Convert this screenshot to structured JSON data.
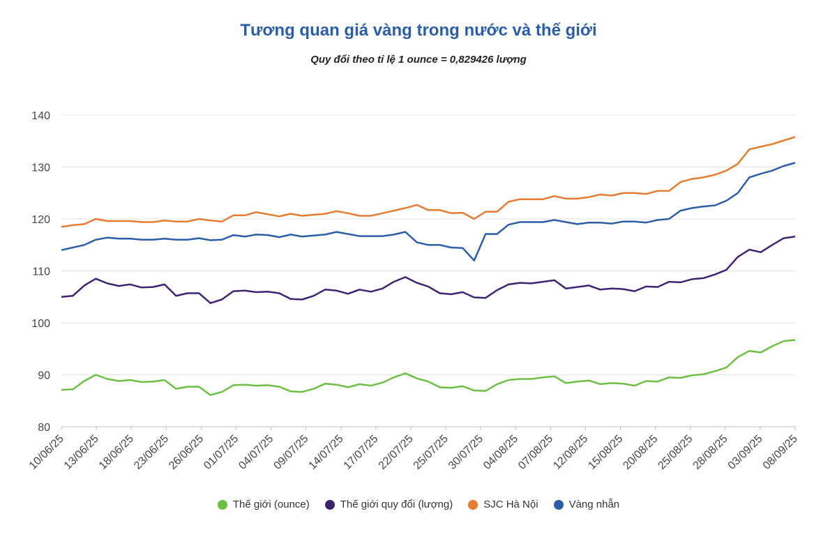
{
  "chart_data": {
    "type": "line",
    "title": "Tương quan giá vàng trong nước và thế giới",
    "subtitle": "Quy đổi theo tỉ lệ 1 ounce = 0,829426 lượng",
    "xlabel": "",
    "ylabel": "",
    "ylim": [
      80,
      140
    ],
    "yticks": [
      80,
      90,
      100,
      110,
      120,
      130,
      140
    ],
    "grid": true,
    "legend_position": "bottom",
    "xtick_labels": [
      "10/06/25",
      "13/06/25",
      "18/06/25",
      "23/06/25",
      "26/06/25",
      "01/07/25",
      "04/07/25",
      "09/07/25",
      "14/07/25",
      "17/07/25",
      "22/07/25",
      "25/07/25",
      "30/07/25",
      "04/08/25",
      "07/08/25",
      "12/08/25",
      "15/08/25",
      "20/08/25",
      "25/08/25",
      "28/08/25",
      "03/09/25",
      "08/09/25"
    ],
    "series": [
      {
        "name": "Thế giới (ounce)",
        "color": "#6cbf45",
        "values": [
          87.1,
          87.2,
          88.8,
          90.0,
          89.2,
          88.8,
          89.0,
          88.6,
          88.7,
          89.0,
          87.3,
          87.7,
          87.7,
          86.1,
          86.7,
          88.0,
          88.1,
          87.9,
          88.0,
          87.7,
          86.8,
          86.7,
          87.3,
          88.3,
          88.1,
          87.6,
          88.2,
          87.9,
          88.5,
          89.5,
          90.3,
          89.3,
          88.7,
          87.6,
          87.5,
          87.8,
          87.0,
          86.9,
          88.2,
          89.0,
          89.2,
          89.2,
          89.5,
          89.7,
          88.4,
          88.7,
          88.9,
          88.2,
          88.4,
          88.3,
          87.9,
          88.8,
          88.7,
          89.5,
          89.4,
          89.9,
          90.1,
          90.7,
          91.4,
          93.4,
          94.6,
          94.3,
          95.5,
          96.5,
          96.7
        ]
      },
      {
        "name": "Thế giới quy đổi (lượng)",
        "color": "#3d2370",
        "values": [
          105.0,
          105.2,
          107.2,
          108.5,
          107.6,
          107.1,
          107.4,
          106.8,
          106.9,
          107.4,
          105.2,
          105.7,
          105.7,
          103.8,
          104.5,
          106.1,
          106.2,
          105.9,
          106.0,
          105.7,
          104.6,
          104.5,
          105.2,
          106.4,
          106.2,
          105.6,
          106.4,
          106.0,
          106.6,
          107.9,
          108.8,
          107.7,
          107.0,
          105.7,
          105.5,
          105.9,
          104.9,
          104.8,
          106.3,
          107.4,
          107.7,
          107.6,
          107.9,
          108.2,
          106.6,
          106.9,
          107.2,
          106.4,
          106.6,
          106.5,
          106.1,
          107.0,
          106.9,
          107.9,
          107.8,
          108.4,
          108.6,
          109.3,
          110.2,
          112.7,
          114.1,
          113.6,
          115.0,
          116.3,
          116.6
        ]
      },
      {
        "name": "SJC Hà Nội",
        "color": "#e47c32",
        "values": [
          118.5,
          118.8,
          119.0,
          120.0,
          119.6,
          119.6,
          119.6,
          119.4,
          119.4,
          119.7,
          119.5,
          119.5,
          120.0,
          119.7,
          119.5,
          120.7,
          120.7,
          121.3,
          120.9,
          120.5,
          121.0,
          120.6,
          120.8,
          121.0,
          121.5,
          121.1,
          120.6,
          120.6,
          121.1,
          121.6,
          122.1,
          122.7,
          121.7,
          121.7,
          121.1,
          121.2,
          120.0,
          121.4,
          121.4,
          123.3,
          123.8,
          123.8,
          123.8,
          124.4,
          123.9,
          123.9,
          124.2,
          124.7,
          124.5,
          125.0,
          125.0,
          124.8,
          125.4,
          125.4,
          127.1,
          127.7,
          128.0,
          128.5,
          129.3,
          130.6,
          133.4,
          133.9,
          134.4,
          135.1,
          135.8
        ]
      },
      {
        "name": "Vàng nhẫn",
        "color": "#2c5ea8",
        "values": [
          114.0,
          114.5,
          115.0,
          116.0,
          116.4,
          116.2,
          116.2,
          116.0,
          116.0,
          116.2,
          116.0,
          116.0,
          116.3,
          115.9,
          116.0,
          116.9,
          116.6,
          117.0,
          116.9,
          116.5,
          117.0,
          116.6,
          116.8,
          117.0,
          117.5,
          117.1,
          116.7,
          116.7,
          116.7,
          117.0,
          117.5,
          115.5,
          115.0,
          115.0,
          114.5,
          114.4,
          112.0,
          117.1,
          117.1,
          118.9,
          119.4,
          119.4,
          119.4,
          119.8,
          119.4,
          119.0,
          119.3,
          119.3,
          119.1,
          119.5,
          119.5,
          119.3,
          119.8,
          120.0,
          121.6,
          122.1,
          122.4,
          122.6,
          123.5,
          125.0,
          128.0,
          128.7,
          129.3,
          130.2,
          130.8
        ]
      }
    ]
  }
}
